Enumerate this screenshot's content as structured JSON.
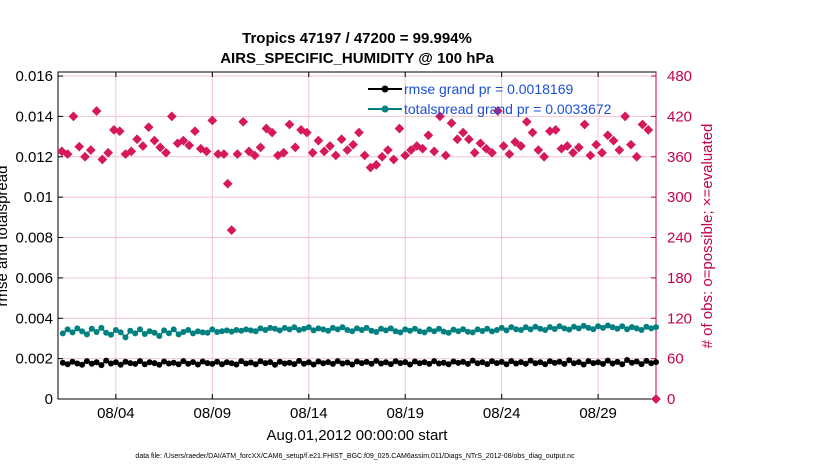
{
  "chart_data": {
    "type": "line",
    "title_line1": "Tropics 47197 / 47200 = 99.994%",
    "title_line2": "AIRS_SPECIFIC_HUMIDITY @ 100 hPa",
    "xlabel": "Aug.01,2012 00:00:00 start",
    "ylabel_left": "rmse and totalspread",
    "ylabel_right": "# of obs: o=possible; ×=evaluated",
    "footer": "data file: /Users/raeder/DAI/ATM_forcXX/CAM6_setup/f.e21.FHIST_BGC.f09_025.CAM6assim.011/Diags_NTrS_2012-08/obs_diag_output.nc",
    "x_ticks": [
      {
        "day": 4,
        "label": "08/04"
      },
      {
        "day": 9,
        "label": "08/09"
      },
      {
        "day": 14,
        "label": "08/14"
      },
      {
        "day": 19,
        "label": "08/19"
      },
      {
        "day": 24,
        "label": "08/24"
      },
      {
        "day": 29,
        "label": "08/29"
      }
    ],
    "xlim": [
      1.0,
      32.0
    ],
    "ylim_left": [
      0,
      0.0162
    ],
    "yticks_left": [
      {
        "v": 0,
        "label": "0"
      },
      {
        "v": 0.002,
        "label": "0.002"
      },
      {
        "v": 0.004,
        "label": "0.004"
      },
      {
        "v": 0.006,
        "label": "0.006"
      },
      {
        "v": 0.008,
        "label": "0.008"
      },
      {
        "v": 0.01,
        "label": "0.01"
      },
      {
        "v": 0.012,
        "label": "0.012"
      },
      {
        "v": 0.014,
        "label": "0.014"
      },
      {
        "v": 0.016,
        "label": "0.016"
      }
    ],
    "ylim_right": [
      0,
      486
    ],
    "yticks_right": [
      {
        "v": 0,
        "label": "0"
      },
      {
        "v": 60,
        "label": "60"
      },
      {
        "v": 120,
        "label": "120"
      },
      {
        "v": 180,
        "label": "180"
      },
      {
        "v": 240,
        "label": "240"
      },
      {
        "v": 300,
        "label": "300"
      },
      {
        "v": 360,
        "label": "360"
      },
      {
        "v": 420,
        "label": "420"
      },
      {
        "v": 480,
        "label": "480"
      }
    ],
    "grid": true,
    "legend_position": "top-right",
    "colors": {
      "rmse": "#000000",
      "spread": "#008080",
      "obs": "#d6185c",
      "legend_text": "#1a4fd6",
      "right_axis": "#c8004f",
      "grid": "#f2c4cf"
    },
    "series": [
      {
        "name": "rmse grand pr = 0.0018169",
        "axis": "left",
        "marker": "circle",
        "x_start": 1.25,
        "x_step": 0.25,
        "values": [
          0.0018,
          0.00172,
          0.00185,
          0.00176,
          0.0017,
          0.00188,
          0.00175,
          0.00182,
          0.00168,
          0.0019,
          0.00176,
          0.00182,
          0.0017,
          0.00185,
          0.00178,
          0.00174,
          0.00188,
          0.00172,
          0.00182,
          0.00178,
          0.0017,
          0.00186,
          0.00176,
          0.0018,
          0.00172,
          0.00188,
          0.00175,
          0.00183,
          0.00171,
          0.00186,
          0.00178,
          0.00174,
          0.00185,
          0.00172,
          0.00182,
          0.00177,
          0.00171,
          0.00188,
          0.00176,
          0.00181,
          0.00172,
          0.00187,
          0.00178,
          0.00183,
          0.0017,
          0.00185,
          0.00176,
          0.0018,
          0.00173,
          0.00189,
          0.00175,
          0.00182,
          0.00171,
          0.00186,
          0.00177,
          0.00183,
          0.00174,
          0.00188,
          0.00176,
          0.00181,
          0.00171,
          0.00186,
          0.00178,
          0.00184,
          0.00175,
          0.00189,
          0.00176,
          0.00182,
          0.00173,
          0.00187,
          0.00178,
          0.00183,
          0.00171,
          0.00186,
          0.00177,
          0.00182,
          0.00174,
          0.00188,
          0.00176,
          0.0018,
          0.00172,
          0.00186,
          0.00179,
          0.00184,
          0.00174,
          0.0019,
          0.00177,
          0.00182,
          0.00173,
          0.00187,
          0.00178,
          0.00184,
          0.00172,
          0.00188,
          0.00176,
          0.00183,
          0.00175,
          0.0019,
          0.00177,
          0.00182,
          0.00172,
          0.00187,
          0.00179,
          0.00185,
          0.00174,
          0.00192,
          0.00177,
          0.00183,
          0.00171,
          0.00188,
          0.00178,
          0.00182,
          0.00174,
          0.0019,
          0.00176,
          0.00184,
          0.00172,
          0.00193,
          0.0018,
          0.00186,
          0.00173,
          0.00189,
          0.00177,
          0.00183
        ]
      },
      {
        "name": "totalspread grand pr = 0.0033672",
        "axis": "left",
        "marker": "circle",
        "x_start": 1.25,
        "x_step": 0.25,
        "values": [
          0.00325,
          0.00345,
          0.0033,
          0.0035,
          0.00335,
          0.0032,
          0.00348,
          0.00332,
          0.00352,
          0.00328,
          0.00318,
          0.00342,
          0.0033,
          0.00305,
          0.00338,
          0.00325,
          0.00345,
          0.00322,
          0.00336,
          0.00328,
          0.00312,
          0.0034,
          0.00326,
          0.00345,
          0.0032,
          0.00332,
          0.00342,
          0.00325,
          0.00335,
          0.0033,
          0.00328,
          0.00345,
          0.00332,
          0.00336,
          0.0034,
          0.00334,
          0.00342,
          0.00338,
          0.00345,
          0.0034,
          0.00336,
          0.0035,
          0.00342,
          0.00352,
          0.00348,
          0.0034,
          0.00352,
          0.00345,
          0.00355,
          0.00342,
          0.00348,
          0.00355,
          0.0034,
          0.0035,
          0.00345,
          0.00338,
          0.00352,
          0.00345,
          0.00355,
          0.00342,
          0.00336,
          0.0035,
          0.00342,
          0.00352,
          0.00338,
          0.00332,
          0.00348,
          0.0034,
          0.0035,
          0.00336,
          0.0033,
          0.00345,
          0.00338,
          0.00348,
          0.00335,
          0.0033,
          0.00345,
          0.00336,
          0.00348,
          0.00334,
          0.00328,
          0.00344,
          0.00336,
          0.00346,
          0.00333,
          0.0033,
          0.00345,
          0.00337,
          0.00348,
          0.00335,
          0.00342,
          0.00352,
          0.0034,
          0.00356,
          0.00346,
          0.00342,
          0.00355,
          0.00345,
          0.00358,
          0.00348,
          0.00342,
          0.00356,
          0.00347,
          0.0036,
          0.0035,
          0.00344,
          0.00358,
          0.0035,
          0.00362,
          0.00352,
          0.00346,
          0.0036,
          0.00352,
          0.00364,
          0.00355,
          0.00348,
          0.0036,
          0.00346,
          0.00356,
          0.0035,
          0.00342,
          0.00358,
          0.0035,
          0.00356
        ]
      },
      {
        "name": "# of obs evaluated",
        "axis": "right",
        "marker": "x",
        "points": [
          [
            1.2,
            368
          ],
          [
            1.5,
            364
          ],
          [
            1.8,
            420
          ],
          [
            2.1,
            375
          ],
          [
            2.4,
            360
          ],
          [
            2.7,
            370
          ],
          [
            3.0,
            428
          ],
          [
            3.3,
            356
          ],
          [
            3.6,
            366
          ],
          [
            3.9,
            400
          ],
          [
            4.2,
            398
          ],
          [
            4.5,
            364
          ],
          [
            4.8,
            368
          ],
          [
            5.1,
            386
          ],
          [
            5.4,
            376
          ],
          [
            5.7,
            404
          ],
          [
            6.0,
            384
          ],
          [
            6.3,
            374
          ],
          [
            6.6,
            366
          ],
          [
            6.9,
            420
          ],
          [
            7.2,
            380
          ],
          [
            7.5,
            384
          ],
          [
            7.8,
            377
          ],
          [
            8.1,
            398
          ],
          [
            8.4,
            372
          ],
          [
            8.7,
            368
          ],
          [
            9.0,
            414
          ],
          [
            9.3,
            364
          ],
          [
            9.6,
            364
          ],
          [
            9.8,
            320
          ],
          [
            10.0,
            251
          ],
          [
            10.3,
            364
          ],
          [
            10.6,
            412
          ],
          [
            10.9,
            368
          ],
          [
            11.2,
            362
          ],
          [
            11.5,
            374
          ],
          [
            11.8,
            402
          ],
          [
            12.1,
            396
          ],
          [
            12.4,
            362
          ],
          [
            12.7,
            366
          ],
          [
            13.0,
            408
          ],
          [
            13.3,
            374
          ],
          [
            13.6,
            400
          ],
          [
            13.9,
            396
          ],
          [
            14.2,
            366
          ],
          [
            14.5,
            384
          ],
          [
            14.8,
            368
          ],
          [
            15.1,
            376
          ],
          [
            15.4,
            362
          ],
          [
            15.7,
            386
          ],
          [
            16.0,
            370
          ],
          [
            16.3,
            378
          ],
          [
            16.6,
            396
          ],
          [
            16.9,
            362
          ],
          [
            17.2,
            344
          ],
          [
            17.5,
            348
          ],
          [
            17.8,
            360
          ],
          [
            18.1,
            370
          ],
          [
            18.4,
            356
          ],
          [
            18.7,
            402
          ],
          [
            19.0,
            362
          ],
          [
            19.3,
            370
          ],
          [
            19.6,
            376
          ],
          [
            19.9,
            372
          ],
          [
            20.2,
            392
          ],
          [
            20.5,
            368
          ],
          [
            20.8,
            420
          ],
          [
            21.1,
            362
          ],
          [
            21.4,
            410
          ],
          [
            21.7,
            386
          ],
          [
            22.0,
            396
          ],
          [
            22.3,
            386
          ],
          [
            22.6,
            366
          ],
          [
            22.9,
            380
          ],
          [
            23.2,
            372
          ],
          [
            23.5,
            366
          ],
          [
            23.8,
            428
          ],
          [
            24.1,
            376
          ],
          [
            24.4,
            364
          ],
          [
            24.7,
            382
          ],
          [
            25.0,
            376
          ],
          [
            25.3,
            412
          ],
          [
            25.6,
            396
          ],
          [
            25.9,
            370
          ],
          [
            26.2,
            360
          ],
          [
            26.5,
            398
          ],
          [
            26.8,
            400
          ],
          [
            27.1,
            372
          ],
          [
            27.4,
            376
          ],
          [
            27.7,
            366
          ],
          [
            28.0,
            374
          ],
          [
            28.3,
            408
          ],
          [
            28.6,
            362
          ],
          [
            28.9,
            378
          ],
          [
            29.2,
            366
          ],
          [
            29.5,
            392
          ],
          [
            29.8,
            384
          ],
          [
            30.1,
            370
          ],
          [
            30.4,
            420
          ],
          [
            30.7,
            378
          ],
          [
            31.0,
            360
          ],
          [
            31.3,
            408
          ],
          [
            31.6,
            400
          ]
        ]
      },
      {
        "name": "# of obs possible",
        "axis": "right",
        "marker": "x",
        "points": [
          [
            32.0,
            0
          ]
        ]
      }
    ]
  }
}
